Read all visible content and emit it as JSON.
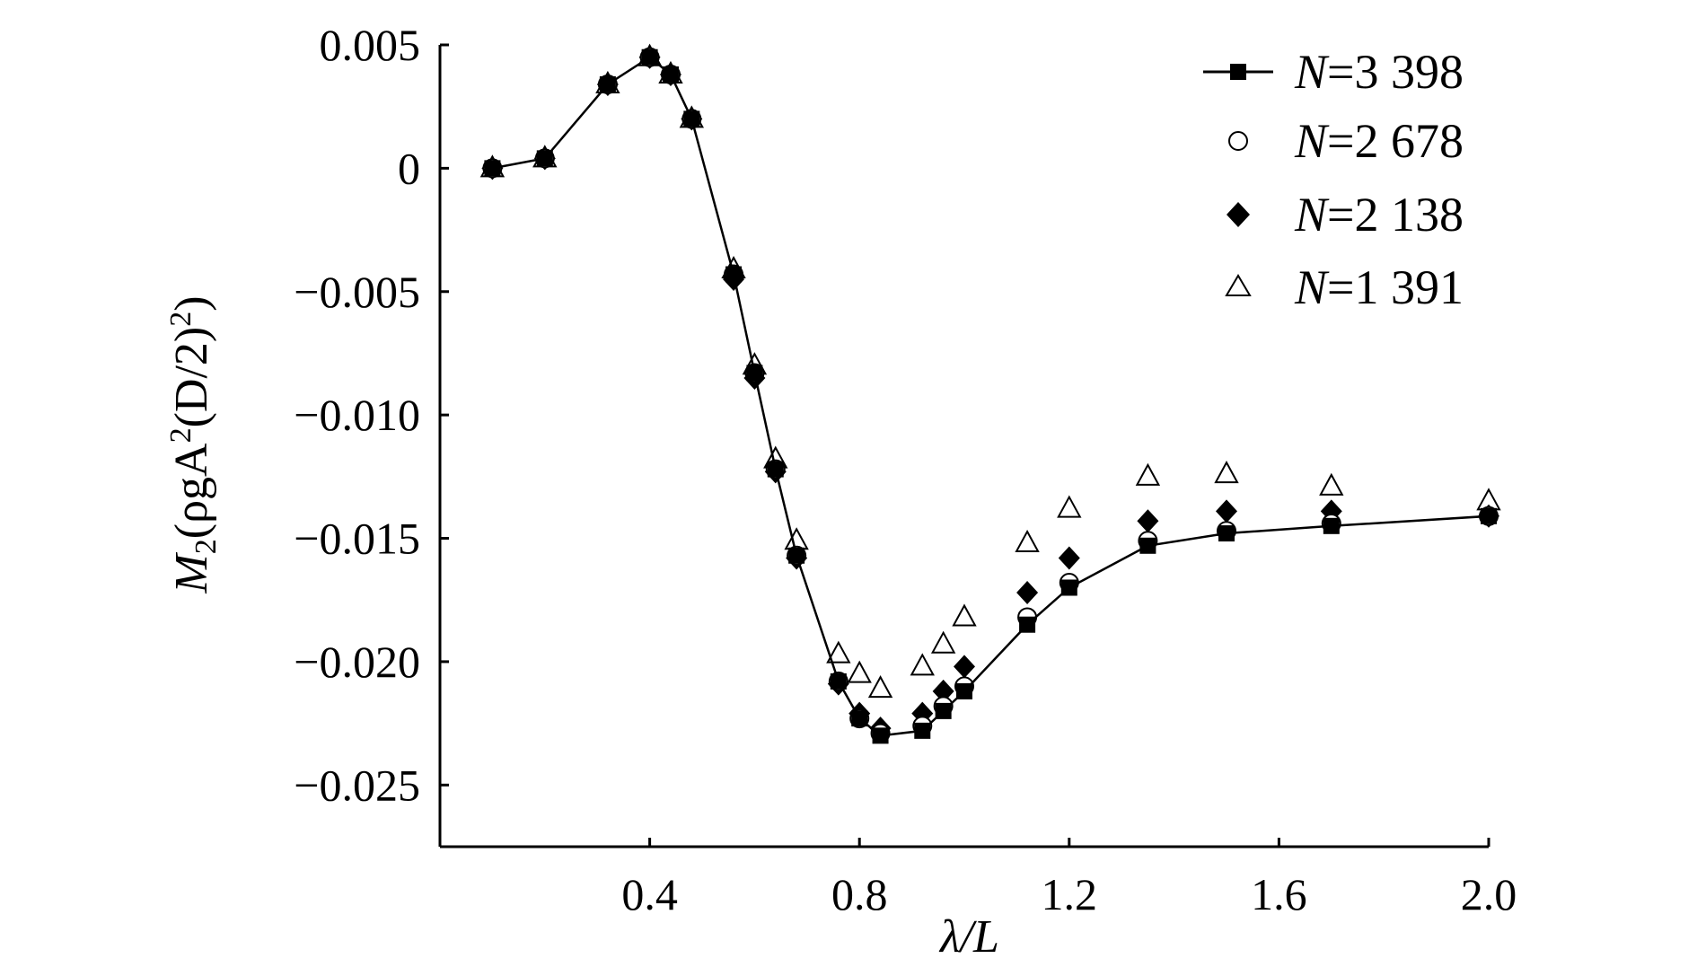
{
  "chart_data": {
    "type": "scatter",
    "title": "",
    "xlabel": {
      "prefix": "λ",
      "suffix": "/L"
    },
    "ylabel": {
      "main": "M",
      "sub": "2",
      "pre": "(ρgA",
      "sup1": "2",
      "mid": "(D/2)",
      "sup2": "2",
      "post": ")"
    },
    "xlim": [
      0.0,
      2.0
    ],
    "ylim": [
      -0.0275,
      0.005
    ],
    "xticks": [
      {
        "value": 0.4,
        "label": "0.4"
      },
      {
        "value": 0.8,
        "label": "0.8"
      },
      {
        "value": 1.2,
        "label": "1.2"
      },
      {
        "value": 1.6,
        "label": "1.6"
      },
      {
        "value": 2.0,
        "label": "2.0"
      }
    ],
    "yticks": [
      {
        "value": 0.005,
        "label": "0.005"
      },
      {
        "value": 0.0,
        "label": "0"
      },
      {
        "value": -0.005,
        "label": "−0.005"
      },
      {
        "value": -0.01,
        "label": "−0.010"
      },
      {
        "value": -0.015,
        "label": "−0.015"
      },
      {
        "value": -0.02,
        "label": "−0.020"
      },
      {
        "value": -0.025,
        "label": "−0.025"
      }
    ],
    "grid": false,
    "legend_position": "top-right",
    "series": [
      {
        "name_var": "N",
        "name_value": "=3 398",
        "marker": "square",
        "line": true,
        "color": "#000000",
        "x": [
          0.1,
          0.2,
          0.32,
          0.4,
          0.44,
          0.48,
          0.56,
          0.6,
          0.64,
          0.68,
          0.76,
          0.8,
          0.84,
          0.92,
          0.96,
          1.0,
          1.12,
          1.2,
          1.35,
          1.5,
          1.7,
          2.0
        ],
        "y": [
          0.0,
          0.0004,
          0.0034,
          0.0045,
          0.0038,
          0.002,
          -0.0043,
          -0.0083,
          -0.0122,
          -0.0157,
          -0.0208,
          -0.0223,
          -0.023,
          -0.0228,
          -0.022,
          -0.0212,
          -0.0185,
          -0.017,
          -0.0153,
          -0.0148,
          -0.0145,
          -0.0141
        ]
      },
      {
        "name_var": "N",
        "name_value": "=2 678",
        "marker": "circle-open",
        "line": false,
        "color": "#000000",
        "x": [
          0.1,
          0.2,
          0.32,
          0.4,
          0.44,
          0.48,
          0.56,
          0.6,
          0.64,
          0.68,
          0.76,
          0.8,
          0.84,
          0.92,
          0.96,
          1.0,
          1.12,
          1.2,
          1.35,
          1.5,
          1.7,
          2.0
        ],
        "y": [
          0.0,
          0.0004,
          0.0034,
          0.0045,
          0.0038,
          0.002,
          -0.0043,
          -0.0083,
          -0.0122,
          -0.0157,
          -0.0208,
          -0.0223,
          -0.0229,
          -0.0226,
          -0.0218,
          -0.021,
          -0.0182,
          -0.0168,
          -0.0151,
          -0.0147,
          -0.0144,
          -0.0141
        ]
      },
      {
        "name_var": "N",
        "name_value": "=2 138",
        "marker": "diamond-filled",
        "line": false,
        "color": "#000000",
        "x": [
          0.1,
          0.2,
          0.32,
          0.4,
          0.44,
          0.48,
          0.56,
          0.6,
          0.64,
          0.68,
          0.76,
          0.8,
          0.84,
          0.92,
          0.96,
          1.0,
          1.12,
          1.2,
          1.35,
          1.5,
          1.7,
          2.0
        ],
        "y": [
          0.0,
          0.0004,
          0.0034,
          0.0045,
          0.0038,
          0.002,
          -0.0045,
          -0.0085,
          -0.0123,
          -0.0158,
          -0.0209,
          -0.0221,
          -0.0227,
          -0.0221,
          -0.0212,
          -0.0202,
          -0.0172,
          -0.0158,
          -0.0143,
          -0.0139,
          -0.0139,
          -0.0141
        ]
      },
      {
        "name_var": "N",
        "name_value": "=1 391",
        "marker": "triangle-open",
        "line": false,
        "color": "#000000",
        "x": [
          0.1,
          0.2,
          0.32,
          0.4,
          0.44,
          0.48,
          0.56,
          0.6,
          0.64,
          0.68,
          0.76,
          0.8,
          0.84,
          0.92,
          0.96,
          1.0,
          1.12,
          1.2,
          1.35,
          1.5,
          1.7,
          2.0
        ],
        "y": [
          0.0,
          0.0004,
          0.0034,
          0.0045,
          0.0038,
          0.002,
          -0.0041,
          -0.008,
          -0.0118,
          -0.0151,
          -0.0197,
          -0.0205,
          -0.0211,
          -0.0202,
          -0.0193,
          -0.0182,
          -0.0152,
          -0.0138,
          -0.0125,
          -0.0124,
          -0.0129,
          -0.0135
        ]
      }
    ]
  }
}
